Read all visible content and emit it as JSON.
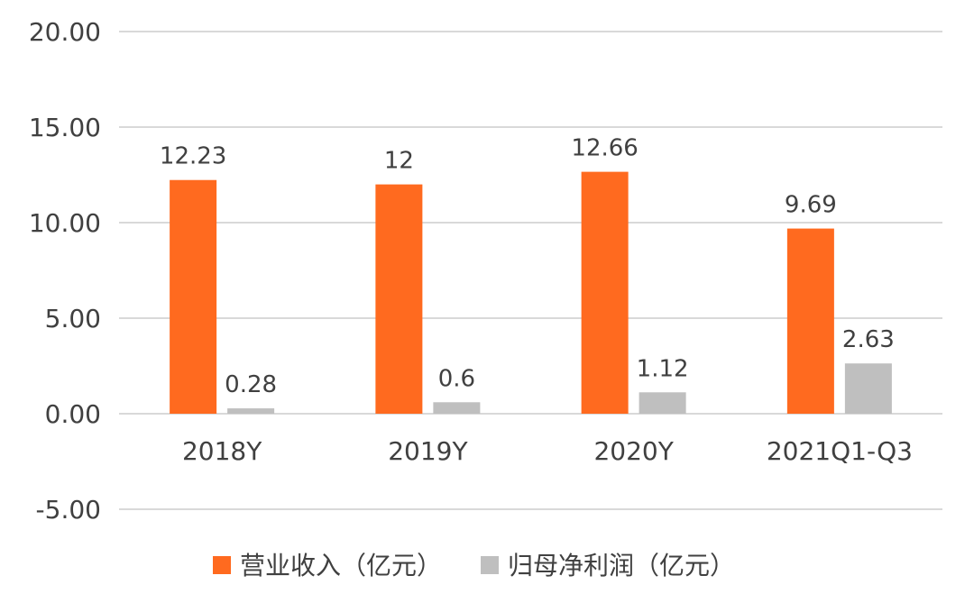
{
  "chart_data": {
    "type": "bar",
    "categories": [
      "2018Y",
      "2019Y",
      "2020Y",
      "2021Q1-Q3"
    ],
    "series": [
      {
        "name": "营业收入（亿元）",
        "color": "#ff6a1f",
        "values": [
          12.23,
          12,
          12.66,
          9.69
        ],
        "labels": [
          "12.23",
          "12",
          "12.66",
          "9.69"
        ]
      },
      {
        "name": "归母净利润（亿元）",
        "color": "#bfbfbf",
        "values": [
          0.28,
          0.6,
          1.12,
          2.63
        ],
        "labels": [
          "0.28",
          "0.6",
          "1.12",
          "2.63"
        ]
      }
    ],
    "y_ticks": [
      "-5.00",
      "0.00",
      "5.00",
      "10.00",
      "15.00",
      "20.00"
    ],
    "ylim": [
      -5,
      20
    ],
    "grid": true,
    "legend_position": "bottom",
    "title": "",
    "xlabel": "",
    "ylabel": ""
  }
}
